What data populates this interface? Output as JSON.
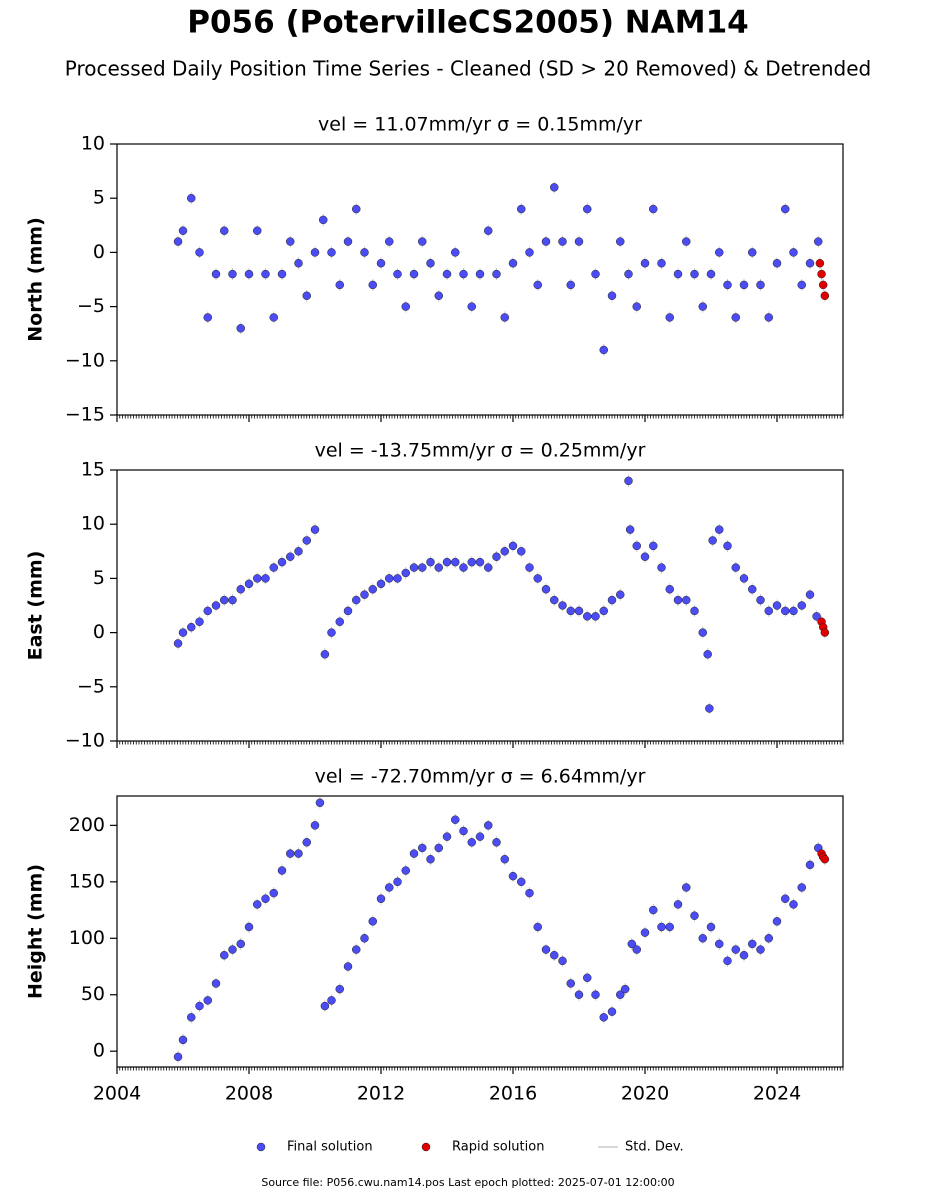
{
  "title": "P056 (PotervilleCS2005) NAM14",
  "subtitle": "Processed Daily Position Time Series - Cleaned (SD > 20 Removed) & Detrended",
  "legend": {
    "std_dev": {
      "label": "Std. Dev.",
      "color": "#cccccc"
    }
  },
  "footer": "Source file: P056.cwu.nam14.pos  Last epoch plotted: 2025-07-01 12:00:00",
  "chart_data": [
    {
      "type": "scatter",
      "title": "vel = 11.07mm/yr   σ = 0.15mm/yr",
      "ylabel": "North (mm)",
      "xlim": [
        2004,
        2026
      ],
      "xticks": [
        2004,
        2008,
        2012,
        2016,
        2020,
        2024
      ],
      "ylim": [
        -15,
        10
      ],
      "yticks": [
        {
          "value": -15,
          "label": "−15"
        },
        {
          "value": -10,
          "label": "−10"
        },
        {
          "value": -5,
          "label": "−5"
        },
        0,
        5,
        10
      ],
      "series": [
        {
          "name": "Final solution",
          "color": "#4c4cf5",
          "x": [
            2005.85,
            2006,
            2006.25,
            2006.5,
            2006.75,
            2007,
            2007.25,
            2007.5,
            2007.75,
            2008,
            2008.25,
            2008.5,
            2008.75,
            2009,
            2009.25,
            2009.5,
            2009.75,
            2010,
            2010.25,
            2010.5,
            2010.75,
            2011,
            2011.25,
            2011.5,
            2011.75,
            2012,
            2012.25,
            2012.5,
            2012.75,
            2013,
            2013.25,
            2013.5,
            2013.75,
            2014,
            2014.25,
            2014.5,
            2014.75,
            2015,
            2015.25,
            2015.5,
            2015.75,
            2016,
            2016.25,
            2016.5,
            2016.75,
            2017,
            2017.25,
            2017.5,
            2017.75,
            2018,
            2018.25,
            2018.5,
            2018.75,
            2019,
            2019.25,
            2019.5,
            2019.75,
            2020,
            2020.25,
            2020.5,
            2020.75,
            2021,
            2021.25,
            2021.5,
            2021.75,
            2022,
            2022.25,
            2022.5,
            2022.75,
            2023,
            2023.25,
            2023.5,
            2023.75,
            2024,
            2024.25,
            2024.5,
            2024.75,
            2025,
            2025.25
          ],
          "values": [
            1,
            2,
            5,
            0,
            -6,
            -2,
            2,
            -2,
            -7,
            -2,
            2,
            -2,
            -6,
            -2,
            1,
            -1,
            -4,
            0,
            3,
            0,
            -3,
            1,
            4,
            0,
            -3,
            -1,
            1,
            -2,
            -5,
            -2,
            1,
            -1,
            -4,
            -2,
            0,
            -2,
            -5,
            -2,
            2,
            -2,
            -6,
            -1,
            4,
            0,
            -3,
            1,
            6,
            1,
            -3,
            1,
            4,
            -2,
            -9,
            -4,
            1,
            -2,
            -5,
            -1,
            4,
            -1,
            -6,
            -2,
            1,
            -2,
            -5,
            -2,
            0,
            -3,
            -6,
            -3,
            0,
            -3,
            -6,
            -1,
            4,
            0,
            -3,
            -1,
            1
          ]
        },
        {
          "name": "Rapid solution",
          "color": "#e00000",
          "x": [
            2025.3,
            2025.35,
            2025.4,
            2025.45
          ],
          "values": [
            -1,
            -2,
            -3,
            -4
          ]
        }
      ]
    },
    {
      "type": "scatter",
      "title": "vel = -13.75mm/yr   σ = 0.25mm/yr",
      "ylabel": "East (mm)",
      "xlim": [
        2004,
        2026
      ],
      "xticks": [
        2004,
        2008,
        2012,
        2016,
        2020,
        2024
      ],
      "ylim": [
        -10,
        15
      ],
      "yticks": [
        {
          "value": -10,
          "label": "−10"
        },
        {
          "value": -5,
          "label": "−5"
        },
        0,
        5,
        10,
        15
      ],
      "series": [
        {
          "name": "Final solution",
          "color": "#4c4cf5",
          "x": [
            2005.85,
            2006,
            2006.25,
            2006.5,
            2006.75,
            2007,
            2007.25,
            2007.5,
            2007.75,
            2008,
            2008.25,
            2008.5,
            2008.75,
            2009,
            2009.25,
            2009.5,
            2009.75,
            2010,
            2010.3,
            2010.5,
            2010.75,
            2011,
            2011.25,
            2011.5,
            2011.75,
            2012,
            2012.25,
            2012.5,
            2012.75,
            2013,
            2013.25,
            2013.5,
            2013.75,
            2014,
            2014.25,
            2014.5,
            2014.75,
            2015,
            2015.25,
            2015.5,
            2015.75,
            2016,
            2016.25,
            2016.5,
            2016.75,
            2017,
            2017.25,
            2017.5,
            2017.75,
            2018,
            2018.25,
            2018.5,
            2018.75,
            2019,
            2019.25,
            2019.5,
            2019.55,
            2019.75,
            2020,
            2020.25,
            2020.5,
            2020.75,
            2021,
            2021.25,
            2021.5,
            2021.75,
            2021.9,
            2021.95,
            2022.05,
            2022.25,
            2022.5,
            2022.75,
            2023,
            2023.25,
            2023.5,
            2023.75,
            2024,
            2024.25,
            2024.5,
            2024.75,
            2025,
            2025.2
          ],
          "values": [
            -1,
            0,
            0.5,
            1,
            2,
            2.5,
            3,
            3,
            4,
            4.5,
            5,
            5,
            6,
            6.5,
            7,
            7.5,
            8.5,
            9.5,
            -2,
            0,
            1,
            2,
            3,
            3.5,
            4,
            4.5,
            5,
            5,
            5.5,
            6,
            6,
            6.5,
            6,
            6.5,
            6.5,
            6,
            6.5,
            6.5,
            6,
            7,
            7.5,
            8,
            7.5,
            6,
            5,
            4,
            3,
            2.5,
            2,
            2,
            1.5,
            1.5,
            2,
            3,
            3.5,
            14,
            9.5,
            8,
            7,
            8,
            6,
            4,
            3,
            3,
            2,
            0,
            -2,
            -7,
            8.5,
            9.5,
            8,
            6,
            5,
            4,
            3,
            2,
            2.5,
            2,
            2,
            2.5,
            3.5,
            1.5
          ]
        },
        {
          "name": "Rapid solution",
          "color": "#e00000",
          "x": [
            2025.35,
            2025.4,
            2025.45
          ],
          "values": [
            1,
            0.5,
            0
          ]
        }
      ]
    },
    {
      "type": "scatter",
      "title": "vel = -72.70mm/yr   σ = 6.64mm/yr",
      "ylabel": "Height (mm)",
      "xlim": [
        2004,
        2026
      ],
      "xticks": [
        2004,
        2008,
        2012,
        2016,
        2020,
        2024
      ],
      "ylim": [
        -14,
        226
      ],
      "yticks": [
        0,
        50,
        100,
        150,
        200
      ],
      "series": [
        {
          "name": "Final solution",
          "color": "#4c4cf5",
          "x": [
            2005.85,
            2006,
            2006.25,
            2006.5,
            2006.75,
            2007,
            2007.25,
            2007.5,
            2007.75,
            2008,
            2008.25,
            2008.5,
            2008.75,
            2009,
            2009.25,
            2009.5,
            2009.75,
            2010,
            2010.15,
            2010.3,
            2010.5,
            2010.75,
            2011,
            2011.25,
            2011.5,
            2011.75,
            2012,
            2012.25,
            2012.5,
            2012.75,
            2013,
            2013.25,
            2013.5,
            2013.75,
            2014,
            2014.25,
            2014.5,
            2014.75,
            2015,
            2015.25,
            2015.5,
            2015.75,
            2016,
            2016.25,
            2016.5,
            2016.75,
            2017,
            2017.25,
            2017.5,
            2017.75,
            2018,
            2018.25,
            2018.5,
            2018.75,
            2019,
            2019.25,
            2019.4,
            2019.6,
            2019.75,
            2020,
            2020.25,
            2020.5,
            2020.75,
            2021,
            2021.25,
            2021.5,
            2021.75,
            2022,
            2022.25,
            2022.5,
            2022.75,
            2023,
            2023.25,
            2023.5,
            2023.75,
            2024,
            2024.25,
            2024.5,
            2024.75,
            2025,
            2025.25
          ],
          "values": [
            -5,
            10,
            30,
            40,
            45,
            60,
            85,
            90,
            95,
            110,
            130,
            135,
            140,
            160,
            175,
            175,
            185,
            200,
            220,
            40,
            45,
            55,
            75,
            90,
            100,
            115,
            135,
            145,
            150,
            160,
            175,
            180,
            170,
            180,
            190,
            205,
            195,
            185,
            190,
            200,
            185,
            170,
            155,
            150,
            140,
            110,
            90,
            85,
            80,
            60,
            50,
            65,
            50,
            30,
            35,
            50,
            55,
            95,
            90,
            105,
            125,
            110,
            110,
            130,
            145,
            120,
            100,
            110,
            95,
            80,
            90,
            85,
            95,
            90,
            100,
            115,
            135,
            130,
            145,
            165,
            180
          ]
        },
        {
          "name": "Rapid solution",
          "color": "#e00000",
          "x": [
            2025.35,
            2025.4,
            2025.45
          ],
          "values": [
            175,
            172,
            170
          ]
        }
      ]
    }
  ]
}
